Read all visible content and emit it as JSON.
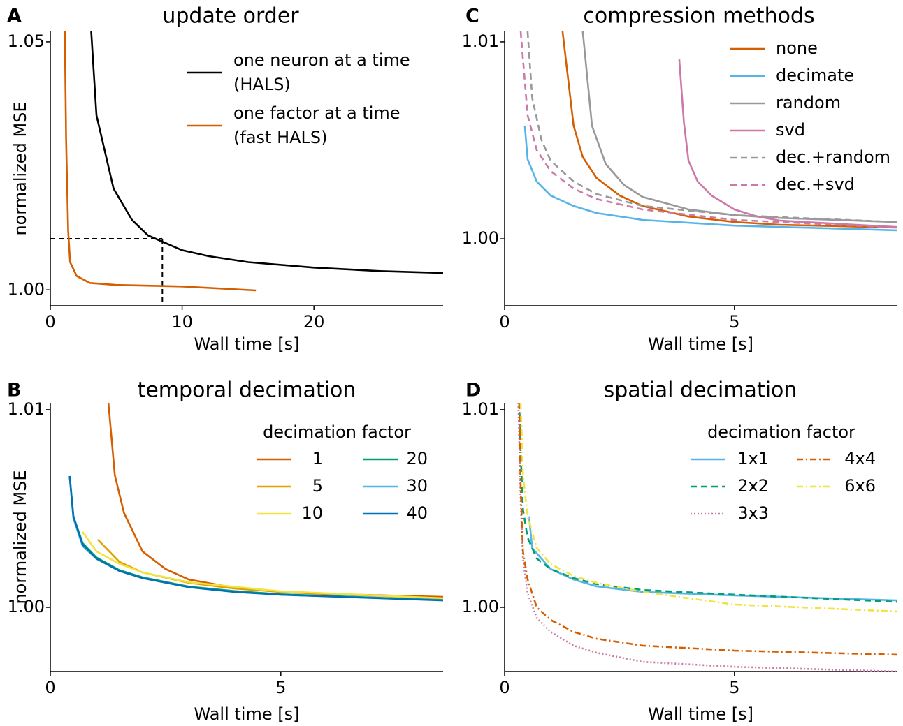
{
  "chart_data": [
    {
      "type": "line",
      "panel_label": "A",
      "title": "update order",
      "xlabel": "Wall time [s]",
      "ylabel": "normalized MSE",
      "xlim": [
        0,
        29.8
      ],
      "ylim": [
        0.9968,
        1.0521
      ],
      "xticks": [
        0,
        10,
        20
      ],
      "yticks": [
        {
          "value": 1.0,
          "label": "1.00"
        },
        {
          "value": 1.05,
          "label": "1.05"
        }
      ],
      "legend": "upper right",
      "legend_columns": 1,
      "guides": {
        "x": 8.5,
        "y": 1.0103
      },
      "series": [
        {
          "name": "one neuron at a time (HALS)",
          "color": "#000000",
          "linestyle": "solid",
          "x": [
            3.1,
            3.5,
            4.8,
            6.2,
            7.4,
            8.6,
            10,
            12,
            15,
            20,
            25,
            29.8
          ],
          "values": [
            1.0521,
            1.0352,
            1.0204,
            1.0141,
            1.011,
            1.0096,
            1.008,
            1.0068,
            1.0056,
            1.0045,
            1.0038,
            1.0034
          ]
        },
        {
          "name": "one factor at a time (fast HALS)",
          "color": "#d55e00",
          "linestyle": "solid",
          "x": [
            1.1,
            1.2,
            1.35,
            1.5,
            2,
            3,
            5,
            10,
            15.6
          ],
          "values": [
            1.0521,
            1.0303,
            1.012,
            1.0056,
            1.0028,
            1.0014,
            1.001,
            1.0007,
            0.9999
          ]
        }
      ]
    },
    {
      "type": "line",
      "panel_label": "B",
      "title": "temporal decimation",
      "xlabel": "Wall time [s]",
      "ylabel": "normalized MSE",
      "xlim": [
        0,
        8.52
      ],
      "ylim": [
        0.99675,
        1.01035
      ],
      "xticks": [
        0,
        5
      ],
      "yticks": [
        {
          "value": 1.0,
          "label": "1.00"
        },
        {
          "value": 1.01,
          "label": "1.01"
        }
      ],
      "legend": "upper right",
      "legend_title": "decimation factor",
      "legend_columns": 2,
      "series": [
        {
          "name": "1",
          "color": "#d55e00",
          "linestyle": "solid",
          "x": [
            1.26,
            1.4,
            1.6,
            2,
            2.5,
            3,
            4,
            5,
            6,
            8.52
          ],
          "values": [
            1.01035,
            1.00668,
            1.00477,
            1.00283,
            1.00194,
            1.00141,
            1.00099,
            1.00078,
            1.00067,
            1.00053
          ]
        },
        {
          "name": "5",
          "color": "#e69f00",
          "linestyle": "solid",
          "x": [
            1.03,
            1.5,
            2,
            3,
            4,
            5,
            8.52
          ],
          "values": [
            1.00343,
            1.0023,
            1.00177,
            1.00124,
            1.00095,
            1.00078,
            1.00046
          ]
        },
        {
          "name": "10",
          "color": "#f0e442",
          "linestyle": "solid",
          "x": [
            0.7,
            1,
            1.5,
            2,
            3,
            5,
            8.52
          ],
          "values": [
            1.00382,
            1.00283,
            1.0022,
            1.00177,
            1.00127,
            1.00081,
            1.00046
          ]
        },
        {
          "name": "20",
          "color": "#009e73",
          "linestyle": "solid",
          "x": [
            0.42,
            0.5,
            0.7,
            1,
            1.5,
            2,
            3,
            4,
            5,
            8.52
          ],
          "values": [
            1.00664,
            1.0046,
            1.00325,
            1.00252,
            1.00188,
            1.00152,
            1.00105,
            1.00082,
            1.00066,
            1.00037
          ]
        },
        {
          "name": "30",
          "color": "#56b4e9",
          "linestyle": "solid",
          "x": [
            0.42,
            0.5,
            0.7,
            1,
            1.5,
            2,
            3,
            4,
            5,
            8.52
          ],
          "values": [
            1.00664,
            1.0045,
            1.0031,
            1.00245,
            1.00184,
            1.00148,
            1.00102,
            1.00078,
            1.00064,
            1.00036
          ]
        },
        {
          "name": "40",
          "color": "#0072b2",
          "linestyle": "solid",
          "x": [
            0.42,
            0.5,
            0.7,
            1,
            1.5,
            2,
            3,
            4,
            5,
            8.52
          ],
          "values": [
            1.00664,
            1.0046,
            1.00318,
            1.00247,
            1.00184,
            1.00148,
            1.00102,
            1.00078,
            1.00064,
            1.00035
          ]
        }
      ]
    },
    {
      "type": "line",
      "panel_label": "C",
      "title": "compression methods",
      "xlabel": "Wall time [s]",
      "xlim": [
        0,
        8.53
      ],
      "ylim": [
        0.9966,
        1.01053
      ],
      "xticks": [
        0,
        5
      ],
      "yticks": [
        {
          "value": 1.0,
          "label": "1.00"
        },
        {
          "value": 1.01,
          "label": "1.01"
        }
      ],
      "legend": "upper right",
      "legend_columns": 1,
      "series": [
        {
          "name": "none",
          "color": "#d55e00",
          "linestyle": "solid",
          "x": [
            1.26,
            1.5,
            1.7,
            2,
            2.5,
            3,
            4,
            5,
            6,
            8.53
          ],
          "values": [
            1.01053,
            1.00574,
            1.00415,
            1.00309,
            1.0022,
            1.00167,
            1.00113,
            1.00085,
            1.00071,
            1.00057
          ]
        },
        {
          "name": "decimate",
          "color": "#56b4e9",
          "linestyle": "solid",
          "x": [
            0.44,
            0.5,
            0.7,
            1,
            1.5,
            2,
            3,
            5,
            8.53
          ],
          "values": [
            1.00574,
            1.00404,
            1.00291,
            1.0022,
            1.00167,
            1.00131,
            1.00096,
            1.00067,
            1.00043
          ]
        },
        {
          "name": "random",
          "color": "#999999",
          "linestyle": "solid",
          "x": [
            1.7,
            1.9,
            2.2,
            2.6,
            3,
            4,
            5,
            6,
            8.53
          ],
          "values": [
            1.01053,
            1.00574,
            1.0038,
            1.00273,
            1.00213,
            1.00149,
            1.0012,
            1.00106,
            1.00085
          ]
        },
        {
          "name": "svd",
          "color": "#cc79a7",
          "linestyle": "solid",
          "x": [
            3.8,
            3.9,
            4.0,
            4.2,
            4.5,
            5,
            5.5,
            6,
            8.53
          ],
          "values": [
            1.00911,
            1.00592,
            1.00397,
            1.00291,
            1.0022,
            1.00149,
            1.00113,
            1.00092,
            1.0006
          ]
        },
        {
          "name": "dec.+random",
          "color": "#999999",
          "linestyle": "dashed",
          "x": [
            0.5,
            0.6,
            0.8,
            1,
            1.5,
            2,
            3,
            5,
            8.53
          ],
          "values": [
            1.01053,
            1.00716,
            1.00504,
            1.00397,
            1.00291,
            1.00227,
            1.00167,
            1.0012,
            1.00085
          ]
        },
        {
          "name": "dec.+svd",
          "color": "#cc79a7",
          "linestyle": "dashed",
          "x": [
            0.35,
            0.5,
            0.7,
            1,
            1.5,
            2,
            3,
            5,
            8.53
          ],
          "values": [
            1.01053,
            1.00628,
            1.0045,
            1.00344,
            1.00255,
            1.00202,
            1.00149,
            1.00096,
            1.00057
          ]
        }
      ]
    },
    {
      "type": "line",
      "panel_label": "D",
      "title": "spatial decimation",
      "xlabel": "Wall time [s]",
      "xlim": [
        0,
        8.53
      ],
      "ylim": [
        0.99675,
        1.01035
      ],
      "xticks": [
        0,
        5
      ],
      "yticks": [
        {
          "value": 1.0,
          "label": "1.00"
        },
        {
          "value": 1.01,
          "label": "1.01"
        }
      ],
      "legend": "upper right",
      "legend_title": "decimation factor",
      "legend_columns": 2,
      "series": [
        {
          "name": "1x1",
          "color": "#56b4e9",
          "linestyle": "solid",
          "x": [
            0.53,
            0.6,
            0.8,
            1,
            1.5,
            2,
            3,
            5,
            8.53
          ],
          "values": [
            1.0046,
            1.003,
            1.00247,
            1.00194,
            1.00141,
            1.00106,
            1.00078,
            1.0006,
            1.00035
          ]
        },
        {
          "name": "2x2",
          "color": "#009e73",
          "linestyle": "dashed",
          "x": [
            0.32,
            0.35,
            0.4,
            0.5,
            0.7,
            1,
            1.5,
            2,
            3,
            5,
            8.53
          ],
          "values": [
            1.01035,
            1.00777,
            1.00495,
            1.00353,
            1.00247,
            1.00194,
            1.00148,
            1.00117,
            1.00088,
            1.00064,
            1.00028
          ]
        },
        {
          "name": "3x3",
          "color": "#cc79a7",
          "linestyle": "dotted",
          "x": [
            0.3,
            0.35,
            0.4,
            0.5,
            0.7,
            1,
            1.5,
            2,
            3,
            5,
            8.53
          ],
          "values": [
            1.01035,
            1.0053,
            1.00247,
            1.00071,
            0.99947,
            0.99876,
            0.99806,
            0.9977,
            0.99724,
            0.99699,
            0.99675
          ]
        },
        {
          "name": "4x4",
          "color": "#d55e00",
          "linestyle": "dashdot",
          "x": [
            0.32,
            0.35,
            0.4,
            0.5,
            0.7,
            1,
            1.5,
            2,
            3,
            5,
            8.53
          ],
          "values": [
            1.01035,
            1.006,
            1.00283,
            1.00141,
            1.0,
            0.99936,
            0.99876,
            0.99841,
            0.99806,
            0.99781,
            0.9976
          ]
        },
        {
          "name": "6x6",
          "color": "#f0e442",
          "linestyle": "dashdot",
          "x": [
            0.35,
            0.4,
            0.5,
            0.7,
            1,
            1.5,
            2,
            3,
            5,
            8.53
          ],
          "values": [
            1.01035,
            1.0067,
            1.0046,
            1.003,
            1.00219,
            1.00159,
            1.00124,
            1.00078,
            1.00014,
            0.99979
          ]
        }
      ]
    }
  ]
}
